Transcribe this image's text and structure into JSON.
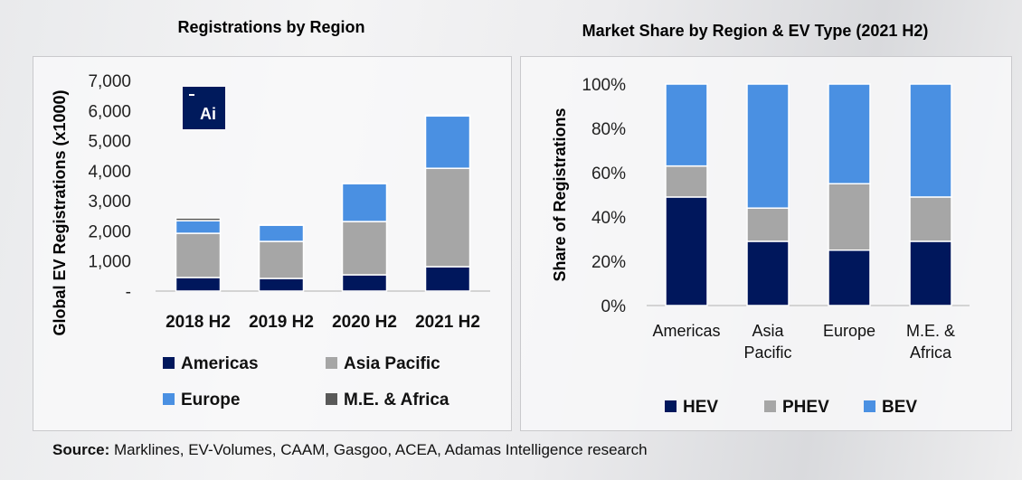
{
  "colors": {
    "Americas": "#00175c",
    "Asia Pacific": "#a6a6a6",
    "Europe": "#4a90e2",
    "M.E. & Africa": "#595959",
    "HEV": "#00175c",
    "PHEV": "#a6a6a6",
    "BEV": "#4a90e2"
  },
  "logo": {
    "text": "Ai"
  },
  "source": {
    "label": "Source:",
    "text": " Marklines, EV-Volumes, CAAM, Gasgoo, ACEA, Adamas Intelligence research"
  },
  "chart_data": [
    {
      "type": "bar",
      "stacked": true,
      "title": "Registrations by Region",
      "xlabel": "",
      "ylabel": "Global EV Registrations (x1000)",
      "ylim": [
        0,
        7000
      ],
      "yticks": [
        0,
        1000,
        2000,
        3000,
        4000,
        5000,
        6000,
        7000
      ],
      "ytick_labels": [
        "-",
        "1,000",
        "2,000",
        "3,000",
        "4,000",
        "5,000",
        "6,000",
        "7,000"
      ],
      "categories": [
        "2018 H2",
        "2019 H2",
        "2020 H2",
        "2021 H2"
      ],
      "series": [
        {
          "name": "Americas",
          "values": [
            450,
            420,
            540,
            810
          ]
        },
        {
          "name": "Asia Pacific",
          "values": [
            1470,
            1230,
            1770,
            3270
          ]
        },
        {
          "name": "Europe",
          "values": [
            420,
            540,
            1260,
            1740
          ]
        },
        {
          "name": "M.E. & Africa",
          "values": [
            90,
            20,
            20,
            30
          ]
        }
      ],
      "legend": "bottom",
      "grid": false
    },
    {
      "type": "bar",
      "stacked": true,
      "title": "Market Share by Region & EV Type (2021 H2)",
      "xlabel": "",
      "ylabel": "Share of Registrations",
      "ylim": [
        0,
        100
      ],
      "yticks": [
        0,
        20,
        40,
        60,
        80,
        100
      ],
      "ytick_labels": [
        "0%",
        "20%",
        "40%",
        "60%",
        "80%",
        "100%"
      ],
      "categories": [
        "Americas",
        "Asia Pacific",
        "Europe",
        "M.E. & Africa"
      ],
      "category_lines": [
        [
          "Americas"
        ],
        [
          "Asia",
          "Pacific"
        ],
        [
          "Europe"
        ],
        [
          "M.E. &",
          "Africa"
        ]
      ],
      "series": [
        {
          "name": "HEV",
          "values": [
            49,
            29,
            25,
            29
          ]
        },
        {
          "name": "PHEV",
          "values": [
            14,
            15,
            30,
            20
          ]
        },
        {
          "name": "BEV",
          "values": [
            37,
            56,
            45,
            51
          ]
        }
      ],
      "legend": "bottom",
      "grid": false
    }
  ]
}
